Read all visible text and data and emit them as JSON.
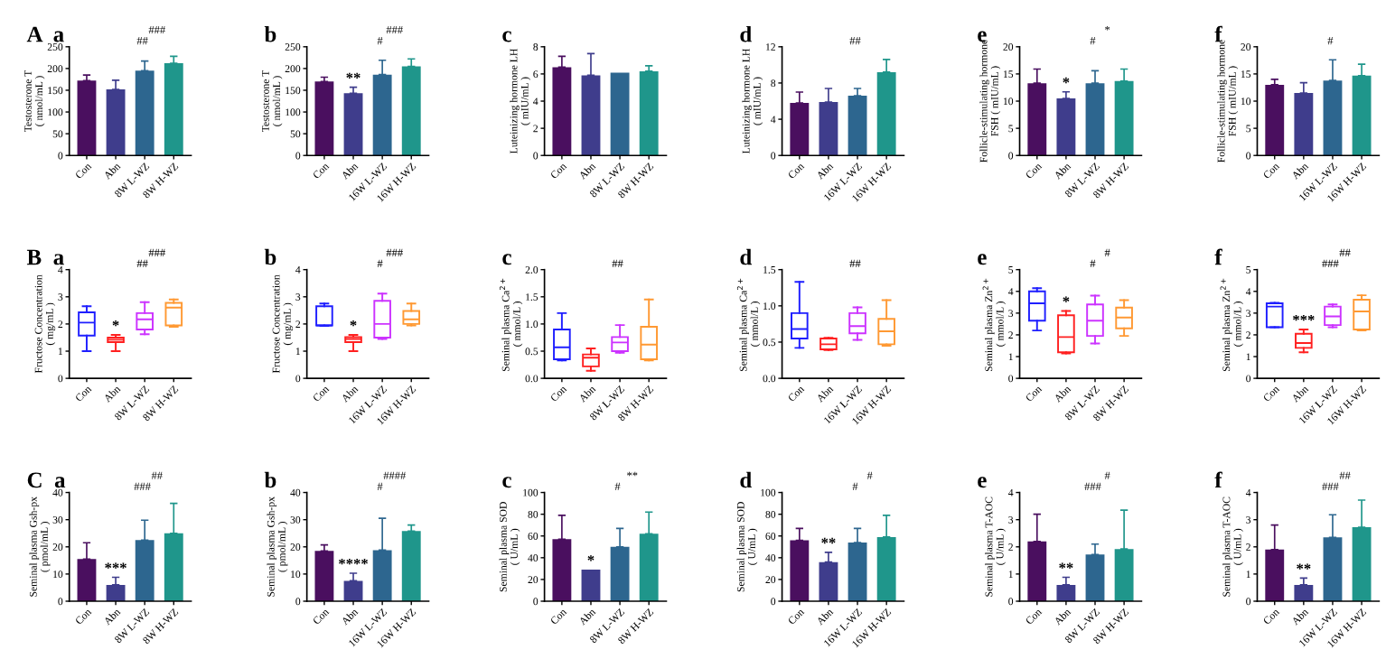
{
  "chart_data": [
    {
      "type": "bar",
      "title": "A  a",
      "ylabel": "Testosterone T\n( nmol/mL )",
      "categories": [
        "Con",
        "Abn",
        "8W L-WZ",
        "8W H-WZ"
      ],
      "values": [
        172,
        152,
        195,
        212
      ],
      "errors": [
        [
          172,
          185
        ],
        [
          152,
          173
        ],
        [
          195,
          217
        ],
        [
          212,
          228
        ]
      ],
      "colors": [
        "#4a0f5f",
        "#3f3d8c",
        "#2d668f",
        "#1f968b"
      ],
      "ylim": [
        0,
        250
      ],
      "yticks": [
        0,
        50,
        100,
        150,
        200,
        250
      ],
      "annotations": [
        "##",
        "###"
      ]
    },
    {
      "type": "bar",
      "title": "b",
      "ylabel": "Testosterone T\n( nmol/mL )",
      "categories": [
        "Con",
        "Abn",
        "16W L-WZ",
        "16W H-WZ"
      ],
      "values": [
        170,
        143,
        186,
        205
      ],
      "errors": [
        [
          170,
          180
        ],
        [
          143,
          157
        ],
        [
          186,
          219
        ],
        [
          205,
          222
        ]
      ],
      "colors": [
        "#4a0f5f",
        "#3f3d8c",
        "#2d668f",
        "#1f968b"
      ],
      "ylim": [
        0,
        250
      ],
      "yticks": [
        0,
        50,
        100,
        150,
        200,
        250
      ],
      "annotations": [
        {
          "text": "**",
          "x": "Abn",
          "y": 157
        },
        "#",
        "###"
      ]
    },
    {
      "type": "bar",
      "title": "c",
      "ylabel": "Luteinizing hormone LH\n( mIU/mL )",
      "categories": [
        "Con",
        "Abn",
        "8W L-WZ",
        "8W H-WZ"
      ],
      "values": [
        6.5,
        5.9,
        6.1,
        6.2
      ],
      "errors": [
        [
          6.5,
          7.3
        ],
        [
          5.9,
          7.5
        ],
        null,
        [
          6.2,
          6.6
        ]
      ],
      "colors": [
        "#4a0f5f",
        "#3f3d8c",
        "#2d668f",
        "#1f968b"
      ],
      "ylim": [
        0,
        8
      ],
      "yticks": [
        0,
        2,
        4,
        6,
        8
      ]
    },
    {
      "type": "bar",
      "title": "d",
      "ylabel": "Luteinizing hormone LH\n( mIU/mL )",
      "categories": [
        "Con",
        "Abn",
        "16W L-WZ",
        "16W H-WZ"
      ],
      "values": [
        5.8,
        5.9,
        6.6,
        9.2
      ],
      "errors": [
        [
          5.8,
          7.0
        ],
        [
          5.9,
          7.4
        ],
        [
          6.6,
          7.4
        ],
        [
          9.2,
          10.6
        ]
      ],
      "colors": [
        "#4a0f5f",
        "#3f3d8c",
        "#2d668f",
        "#1f968b"
      ],
      "ylim": [
        0,
        12
      ],
      "yticks": [
        0,
        4,
        8,
        12
      ],
      "annotations": [
        "##"
      ]
    },
    {
      "type": "bar",
      "title": "e",
      "ylabel": "Follicle-stimulating hormone\nFSH ( mIU/mL )",
      "categories": [
        "Con",
        "Abn",
        "8W L-WZ",
        "8W H-WZ"
      ],
      "values": [
        13.3,
        10.5,
        13.3,
        13.7
      ],
      "errors": [
        [
          13.3,
          15.9
        ],
        [
          10.5,
          11.7
        ],
        [
          13.3,
          15.6
        ],
        [
          13.7,
          15.9
        ]
      ],
      "colors": [
        "#4a0f5f",
        "#3f3d8c",
        "#2d668f",
        "#1f968b"
      ],
      "ylim": [
        0,
        20
      ],
      "yticks": [
        0,
        5,
        10,
        15,
        20
      ],
      "annotations": [
        {
          "text": "*",
          "x": "Abn",
          "y": 11.7
        },
        "#",
        "*"
      ]
    },
    {
      "type": "bar",
      "title": "f",
      "ylabel": "Follicle-stimulating hormone\nFSH ( mIU/mL )",
      "categories": [
        "Con",
        "Abn",
        "16W L-WZ",
        "16W H-WZ"
      ],
      "values": [
        13.0,
        11.5,
        13.8,
        14.7
      ],
      "errors": [
        [
          13.0,
          14.0
        ],
        [
          11.5,
          13.4
        ],
        [
          13.8,
          17.6
        ],
        [
          14.7,
          16.8
        ]
      ],
      "colors": [
        "#4a0f5f",
        "#3f3d8c",
        "#2d668f",
        "#1f968b"
      ],
      "ylim": [
        0,
        20
      ],
      "yticks": [
        0,
        5,
        10,
        15,
        20
      ],
      "annotations": [
        "#"
      ]
    },
    {
      "type": "box",
      "title": "B  a",
      "ylabel": "Fructose Concentration\n( mg/mL )",
      "categories": [
        "Con",
        "Abn",
        "8W L-WZ",
        "8W H-WZ"
      ],
      "colors": [
        "#1f1fff",
        "#ff2020",
        "#cc33ff",
        "#ff9933"
      ],
      "ylim": [
        0,
        4
      ],
      "yticks": [
        0,
        1,
        2,
        3,
        4
      ],
      "boxes": [
        {
          "low": 1.0,
          "q1": 1.57,
          "median": 2.05,
          "q3": 2.43,
          "high": 2.65
        },
        {
          "low": 1.0,
          "q1": 1.33,
          "median": 1.42,
          "q3": 1.5,
          "high": 1.6
        },
        {
          "low": 1.62,
          "q1": 1.8,
          "median": 2.17,
          "q3": 2.4,
          "high": 2.8
        },
        {
          "low": 1.9,
          "q1": 1.95,
          "median": 2.6,
          "q3": 2.78,
          "high": 2.9
        }
      ],
      "annotations": [
        {
          "text": "*",
          "x": "Abn",
          "y": 1.6
        },
        "##",
        "###"
      ]
    },
    {
      "type": "box",
      "title": "b",
      "ylabel": "Fructose Concentration\n( mg/mL )",
      "categories": [
        "Con",
        "Abn",
        "16W L-WZ",
        "16W H-WZ"
      ],
      "colors": [
        "#1f1fff",
        "#ff2020",
        "#cc33ff",
        "#ff9933"
      ],
      "ylim": [
        0,
        4
      ],
      "yticks": [
        0,
        1,
        2,
        3,
        4
      ],
      "boxes": [
        {
          "low": 1.93,
          "q1": 1.95,
          "median": 1.95,
          "q3": 2.65,
          "high": 2.75
        },
        {
          "low": 1.0,
          "q1": 1.33,
          "median": 1.45,
          "q3": 1.52,
          "high": 1.6
        },
        {
          "low": 1.45,
          "q1": 1.5,
          "median": 2.0,
          "q3": 2.85,
          "high": 3.12
        },
        {
          "low": 1.95,
          "q1": 2.0,
          "median": 2.17,
          "q3": 2.48,
          "high": 2.75
        }
      ],
      "annotations": [
        {
          "text": "*",
          "x": "Abn",
          "y": 1.6
        },
        "#",
        "###"
      ]
    },
    {
      "type": "box",
      "title": "c",
      "ylabel": "Seminal plasma Ca$^{2+}$\n( mmol/L )",
      "categories": [
        "Con",
        "Abn",
        "8W L-WZ",
        "8W H-WZ"
      ],
      "colors": [
        "#1f1fff",
        "#ff2020",
        "#cc33ff",
        "#ff9933"
      ],
      "ylim": [
        0,
        2
      ],
      "yticks": [
        {
          "value": 0,
          "label": "0.0"
        },
        {
          "value": 0.5,
          "label": "0.5"
        },
        {
          "value": 1,
          "label": "1.0"
        },
        {
          "value": 1.5,
          "label": "1.5"
        },
        {
          "value": 2,
          "label": "2.0"
        }
      ],
      "boxes": [
        {
          "low": 0.33,
          "q1": 0.35,
          "median": 0.57,
          "q3": 0.9,
          "high": 1.2
        },
        {
          "low": 0.14,
          "q1": 0.22,
          "median": 0.38,
          "q3": 0.44,
          "high": 0.55
        },
        {
          "low": 0.47,
          "q1": 0.5,
          "median": 0.66,
          "q3": 0.76,
          "high": 0.98
        },
        {
          "low": 0.33,
          "q1": 0.35,
          "median": 0.62,
          "q3": 0.95,
          "high": 1.45
        }
      ],
      "annotations": [
        "##"
      ]
    },
    {
      "type": "box",
      "title": "d",
      "ylabel": "Seminal plasma Ca$^{2+}$\n( mmol/L )",
      "categories": [
        "Con",
        "Abn",
        "16W L-WZ",
        "16W H-WZ"
      ],
      "colors": [
        "#1f1fff",
        "#ff2020",
        "#cc33ff",
        "#ff9933"
      ],
      "ylim": [
        0,
        1.5
      ],
      "yticks": [
        {
          "value": 0,
          "label": "0.0"
        },
        {
          "value": 0.5,
          "label": "0.5"
        },
        {
          "value": 1,
          "label": "1.0"
        },
        {
          "value": 1.5,
          "label": "1.5"
        }
      ],
      "boxes": [
        {
          "low": 0.42,
          "q1": 0.55,
          "median": 0.68,
          "q3": 0.9,
          "high": 1.33
        },
        {
          "low": 0.39,
          "q1": 0.4,
          "median": 0.47,
          "q3": 0.55,
          "high": 0.56
        },
        {
          "low": 0.53,
          "q1": 0.62,
          "median": 0.72,
          "q3": 0.9,
          "high": 0.98
        },
        {
          "low": 0.45,
          "q1": 0.47,
          "median": 0.65,
          "q3": 0.82,
          "high": 1.08
        }
      ],
      "annotations": [
        "##"
      ]
    },
    {
      "type": "box",
      "title": "e",
      "ylabel": "Seminal plasma Zn$^{2+}$\n( mmol/L )",
      "categories": [
        "Con",
        "Abn",
        "8W L-WZ",
        "8W H-WZ"
      ],
      "colors": [
        "#1f1fff",
        "#ff2020",
        "#cc33ff",
        "#ff9933"
      ],
      "ylim": [
        0,
        5
      ],
      "yticks": [
        0,
        1,
        2,
        3,
        4,
        5
      ],
      "boxes": [
        {
          "low": 2.2,
          "q1": 2.65,
          "median": 3.45,
          "q3": 4.0,
          "high": 4.15
        },
        {
          "low": 1.15,
          "q1": 1.2,
          "median": 1.9,
          "q3": 2.9,
          "high": 3.1
        },
        {
          "low": 1.6,
          "q1": 1.95,
          "median": 2.65,
          "q3": 3.4,
          "high": 3.8
        },
        {
          "low": 1.95,
          "q1": 2.3,
          "median": 2.8,
          "q3": 3.25,
          "high": 3.6
        }
      ],
      "annotations": [
        {
          "text": "*",
          "x": "Abn",
          "y": 3.1
        },
        "#",
        "#"
      ]
    },
    {
      "type": "box",
      "title": "f",
      "ylabel": "Seminal plasma Zn$^{2+}$\n( mmol/L )",
      "categories": [
        "Con",
        "Abn",
        "16W L-WZ",
        "16W H-WZ"
      ],
      "colors": [
        "#1f1fff",
        "#ff2020",
        "#cc33ff",
        "#ff9933"
      ],
      "ylim": [
        0,
        5
      ],
      "yticks": [
        0,
        1,
        2,
        3,
        4,
        5
      ],
      "boxes": [
        {
          "low": 2.35,
          "q1": 2.35,
          "median": 3.3,
          "q3": 3.45,
          "high": 3.47
        },
        {
          "low": 1.2,
          "q1": 1.4,
          "median": 1.62,
          "q3": 2.05,
          "high": 2.25
        },
        {
          "low": 2.35,
          "q1": 2.45,
          "median": 2.85,
          "q3": 3.3,
          "high": 3.4
        },
        {
          "low": 2.2,
          "q1": 2.25,
          "median": 3.08,
          "q3": 3.62,
          "high": 3.82
        }
      ],
      "annotations": [
        {
          "text": "***",
          "x": "Abn",
          "y": 2.25
        },
        "###",
        "##"
      ]
    },
    {
      "type": "bar",
      "title": "C  a",
      "ylabel": "Seminal plasma Gsh-px\n( pmol/mL )",
      "categories": [
        "Con",
        "Abn",
        "8W L-WZ",
        "8W H-WZ"
      ],
      "values": [
        15.5,
        6,
        22.5,
        25
      ],
      "errors": [
        [
          15.5,
          21.5
        ],
        [
          6,
          8.8
        ],
        [
          22.5,
          29.8
        ],
        [
          25,
          36
        ]
      ],
      "colors": [
        "#4a0f5f",
        "#3f3d8c",
        "#2d668f",
        "#1f968b"
      ],
      "ylim": [
        0,
        40
      ],
      "yticks": [
        0,
        10,
        20,
        30,
        40
      ],
      "annotations": [
        {
          "text": "***",
          "x": "Abn",
          "y": 8.8
        },
        "###",
        "##"
      ]
    },
    {
      "type": "bar",
      "title": "b",
      "ylabel": "Seminal plasma Gsh-px\n( pmol/mL )",
      "categories": [
        "Con",
        "Abn",
        "16W L-WZ",
        "16W H-WZ"
      ],
      "values": [
        18.5,
        7.5,
        18.8,
        25.8
      ],
      "errors": [
        [
          18.5,
          20.7
        ],
        [
          7.5,
          10.3
        ],
        [
          18.8,
          30.5
        ],
        [
          25.8,
          28
        ]
      ],
      "colors": [
        "#4a0f5f",
        "#3f3d8c",
        "#2d668f",
        "#1f968b"
      ],
      "ylim": [
        0,
        40
      ],
      "yticks": [
        0,
        10,
        20,
        30,
        40
      ],
      "annotations": [
        {
          "text": "****",
          "x": "Abn",
          "y": 10.3
        },
        "#",
        "####"
      ]
    },
    {
      "type": "bar",
      "title": "c",
      "ylabel": "Seminal plasma SOD\n( U/mL )",
      "categories": [
        "Con",
        "Abn",
        "8W L-WZ",
        "8W H-WZ"
      ],
      "values": [
        57,
        29,
        50,
        62
      ],
      "errors": [
        [
          57,
          79
        ],
        null,
        [
          50,
          67
        ],
        [
          62,
          82
        ]
      ],
      "colors": [
        "#4a0f5f",
        "#3f3d8c",
        "#2d668f",
        "#1f968b"
      ],
      "ylim": [
        0,
        100
      ],
      "yticks": [
        0,
        20,
        40,
        60,
        80,
        100
      ],
      "annotations": [
        {
          "text": "*",
          "x": "Abn",
          "y": 29
        },
        "#",
        "**"
      ]
    },
    {
      "type": "bar",
      "title": "d",
      "ylabel": "Seminal plasma SOD\n( U/mL )",
      "categories": [
        "Con",
        "Abn",
        "16W L-WZ",
        "16W H-WZ"
      ],
      "values": [
        56,
        36,
        54,
        59
      ],
      "errors": [
        [
          56,
          67
        ],
        [
          36,
          45
        ],
        [
          54,
          67
        ],
        [
          59,
          79
        ]
      ],
      "colors": [
        "#4a0f5f",
        "#3f3d8c",
        "#2d668f",
        "#1f968b"
      ],
      "ylim": [
        0,
        100
      ],
      "yticks": [
        0,
        20,
        40,
        60,
        80,
        100
      ],
      "annotations": [
        {
          "text": "**",
          "x": "Abn",
          "y": 45
        },
        "#",
        "#"
      ]
    },
    {
      "type": "bar",
      "title": "e",
      "ylabel": "Seminal plasma T-AOC\n( U/mL )",
      "categories": [
        "Con",
        "Abn",
        "8W L-WZ",
        "8W H-WZ"
      ],
      "values": [
        2.2,
        0.6,
        1.72,
        1.92
      ],
      "errors": [
        [
          2.2,
          3.2
        ],
        [
          0.6,
          0.88
        ],
        [
          1.72,
          2.1
        ],
        [
          1.92,
          3.35
        ]
      ],
      "colors": [
        "#4a0f5f",
        "#3f3d8c",
        "#2d668f",
        "#1f968b"
      ],
      "ylim": [
        0,
        4
      ],
      "yticks": [
        0,
        1,
        2,
        3,
        4
      ],
      "annotations": [
        {
          "text": "**",
          "x": "Abn",
          "y": 0.88
        },
        "###",
        "#"
      ]
    },
    {
      "type": "bar",
      "title": "f",
      "ylabel": "Seminal plasma T-AOC\n( U/mL )",
      "categories": [
        "Con",
        "Abn",
        "16W L-WZ",
        "16W H-WZ"
      ],
      "values": [
        1.9,
        0.6,
        2.35,
        2.72
      ],
      "errors": [
        [
          1.9,
          2.8
        ],
        [
          0.6,
          0.85
        ],
        [
          2.35,
          3.18
        ],
        [
          2.72,
          3.72
        ]
      ],
      "colors": [
        "#4a0f5f",
        "#3f3d8c",
        "#2d668f",
        "#1f968b"
      ],
      "ylim": [
        0,
        4
      ],
      "yticks": [
        0,
        1,
        2,
        3,
        4
      ],
      "annotations": [
        {
          "text": "**",
          "x": "Abn",
          "y": 0.85
        },
        "###",
        "##"
      ]
    }
  ]
}
